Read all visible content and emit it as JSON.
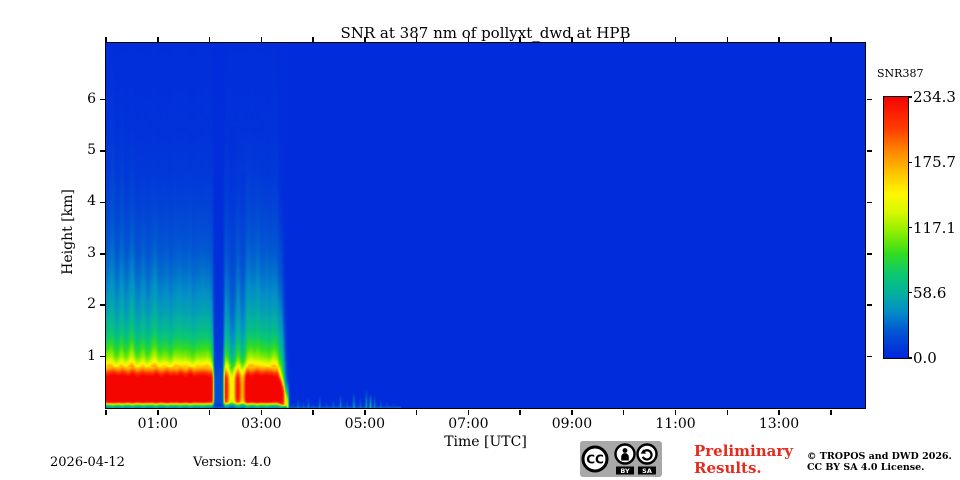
{
  "footer": {
    "date": "2026-04-12",
    "version": "Version: 4.0",
    "preliminary_line1": "Preliminary",
    "preliminary_line2": "Results.",
    "copyright_line1": "© TROPOS and DWD 2026.",
    "copyright_line2": "CC BY SA 4.0 License."
  },
  "badge": {
    "cc": "CC",
    "by": "BY",
    "sa": "SA"
  },
  "colors": {
    "preliminary_red": "#e22c1e",
    "badge_gray": "#a8a8a8",
    "axis_black": "#000000"
  },
  "chart_data": {
    "type": "heatmap",
    "title": "SNR at 387 nm of pollyxt_dwd at HPB",
    "xlabel": "Time [UTC]",
    "ylabel": "Height [km]",
    "x_range_hours": [
      0,
      14.66
    ],
    "y_range_km": [
      0,
      7.1
    ],
    "grid": false,
    "x_ticks": [
      {
        "hour": 0,
        "label": ""
      },
      {
        "hour": 1,
        "label": "01:00"
      },
      {
        "hour": 2,
        "label": ""
      },
      {
        "hour": 3,
        "label": "03:00"
      },
      {
        "hour": 4,
        "label": ""
      },
      {
        "hour": 5,
        "label": "05:00"
      },
      {
        "hour": 6,
        "label": ""
      },
      {
        "hour": 7,
        "label": "07:00"
      },
      {
        "hour": 8,
        "label": ""
      },
      {
        "hour": 9,
        "label": "09:00"
      },
      {
        "hour": 10,
        "label": ""
      },
      {
        "hour": 11,
        "label": "11:00"
      },
      {
        "hour": 12,
        "label": ""
      },
      {
        "hour": 13,
        "label": "13:00"
      },
      {
        "hour": 14,
        "label": ""
      }
    ],
    "y_ticks": [
      1,
      2,
      3,
      4,
      5,
      6
    ],
    "colorbar": {
      "title": "SNR387",
      "vmin": 0,
      "vmax": 234.3,
      "ticks": [
        234.3,
        175.7,
        117.1,
        58.6,
        0.0
      ]
    },
    "colormap_stops": [
      [
        0.0,
        "#0126dc"
      ],
      [
        0.1,
        "#0256d2"
      ],
      [
        0.18,
        "#0390c6"
      ],
      [
        0.25,
        "#04b29e"
      ],
      [
        0.32,
        "#0cc86e"
      ],
      [
        0.4,
        "#33dd1f"
      ],
      [
        0.48,
        "#8cee00"
      ],
      [
        0.56,
        "#daf800"
      ],
      [
        0.63,
        "#fef800"
      ],
      [
        0.71,
        "#ffc300"
      ],
      [
        0.79,
        "#ff8a00"
      ],
      [
        0.88,
        "#ff3d00"
      ],
      [
        1.0,
        "#f40500"
      ]
    ],
    "background_snr": 3,
    "profile_points": [
      [
        0.0,
        30
      ],
      [
        0.04,
        58
      ],
      [
        0.08,
        118
      ],
      [
        0.11,
        200
      ],
      [
        0.14,
        232
      ],
      [
        0.22,
        246
      ],
      [
        0.45,
        248
      ],
      [
        0.6,
        238
      ],
      [
        0.66,
        220
      ],
      [
        0.72,
        195
      ],
      [
        0.78,
        170
      ],
      [
        0.84,
        150
      ],
      [
        0.92,
        125
      ],
      [
        1.0,
        108
      ],
      [
        1.15,
        90
      ],
      [
        1.35,
        72
      ],
      [
        1.55,
        60
      ],
      [
        1.9,
        47
      ],
      [
        2.2,
        40
      ],
      [
        2.6,
        31
      ],
      [
        3.0,
        24
      ],
      [
        3.5,
        18
      ],
      [
        4.0,
        13
      ],
      [
        4.6,
        9
      ],
      [
        5.4,
        6
      ],
      [
        7.1,
        4
      ]
    ],
    "envelope_points": [
      [
        0.0,
        1
      ],
      [
        2.04,
        1
      ],
      [
        2.09,
        0.07
      ],
      [
        2.24,
        0.07
      ],
      [
        2.3,
        1
      ],
      [
        3.3,
        1
      ],
      [
        3.42,
        0.85
      ],
      [
        3.5,
        0.18
      ],
      [
        3.55,
        0
      ],
      [
        14.66,
        0
      ]
    ],
    "collapse_scale_points": [
      [
        0.0,
        1
      ],
      [
        3.3,
        1
      ],
      [
        3.52,
        0.25
      ],
      [
        3.58,
        0.08
      ],
      [
        14.66,
        0.08
      ]
    ],
    "streaks": [
      {
        "t": 0.12,
        "top": 6.9,
        "a": 16,
        "w": 0.055
      },
      {
        "t": 0.3,
        "top": 6.4,
        "a": 14,
        "w": 0.05
      },
      {
        "t": 0.5,
        "top": 5.6,
        "a": 13,
        "w": 0.05
      },
      {
        "t": 0.72,
        "top": 4.6,
        "a": 12,
        "w": 0.05
      },
      {
        "t": 0.95,
        "top": 4.3,
        "a": 14,
        "w": 0.05
      },
      {
        "t": 1.18,
        "top": 4.5,
        "a": 12,
        "w": 0.05
      },
      {
        "t": 1.42,
        "top": 4.1,
        "a": 11,
        "w": 0.05
      },
      {
        "t": 1.62,
        "top": 4.9,
        "a": 13,
        "w": 0.05
      },
      {
        "t": 1.85,
        "top": 4.2,
        "a": 10,
        "w": 0.05
      },
      {
        "t": 2.55,
        "top": 4.8,
        "a": 13,
        "w": 0.05
      },
      {
        "t": 2.72,
        "top": 5.5,
        "a": 15,
        "w": 0.05
      },
      {
        "t": 2.92,
        "top": 5.1,
        "a": 17,
        "w": 0.05
      },
      {
        "t": 3.1,
        "top": 4.5,
        "a": 13,
        "w": 0.05
      },
      {
        "t": 3.38,
        "top": 4.3,
        "a": 15,
        "w": 0.04
      },
      {
        "t": 2.42,
        "top": 5.5,
        "a": -0.45,
        "w": 0.08
      },
      {
        "t": 2.62,
        "top": 4.6,
        "a": -0.3,
        "w": 0.07
      }
    ],
    "noise_spikes": [
      [
        3.5,
        0.58,
        95,
        0.025
      ],
      [
        3.6,
        0.12,
        30,
        0.02
      ],
      [
        3.7,
        0.2,
        42,
        0.02
      ],
      [
        3.8,
        0.15,
        32,
        0.018
      ],
      [
        3.9,
        0.22,
        40,
        0.02
      ],
      [
        4.0,
        0.12,
        28,
        0.018
      ],
      [
        4.12,
        0.25,
        46,
        0.02
      ],
      [
        4.25,
        0.15,
        30,
        0.018
      ],
      [
        4.38,
        0.2,
        36,
        0.02
      ],
      [
        4.52,
        0.28,
        48,
        0.022
      ],
      [
        4.65,
        0.18,
        32,
        0.018
      ],
      [
        4.78,
        0.33,
        55,
        0.022
      ],
      [
        4.9,
        0.22,
        40,
        0.02
      ],
      [
        5.02,
        0.38,
        58,
        0.022
      ],
      [
        5.1,
        0.3,
        78,
        0.022
      ],
      [
        5.18,
        0.26,
        50,
        0.02
      ],
      [
        5.3,
        0.18,
        38,
        0.02
      ],
      [
        5.42,
        0.14,
        30,
        0.018
      ],
      [
        5.55,
        0.1,
        24,
        0.018
      ]
    ],
    "noise_floor": {
      "t_start": 0.0,
      "t_end": 5.68,
      "h": 0.055,
      "amp": 32
    }
  }
}
